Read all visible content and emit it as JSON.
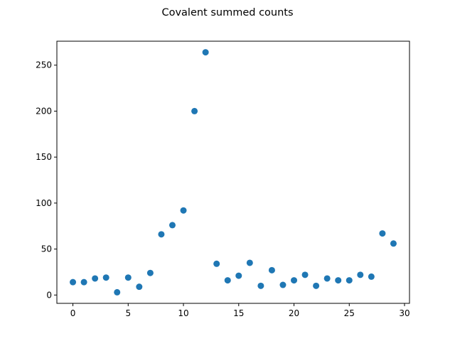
{
  "chart_data": {
    "type": "scatter",
    "title": "Covalent summed counts",
    "xlabel": "",
    "ylabel": "",
    "xlim": [
      -1.45,
      30.45
    ],
    "ylim": [
      -9.05,
      276.05
    ],
    "grid": false,
    "x_ticks": [
      0,
      5,
      10,
      15,
      20,
      25,
      30
    ],
    "y_ticks": [
      0,
      50,
      100,
      150,
      200,
      250
    ],
    "x": [
      0,
      1,
      2,
      3,
      4,
      5,
      6,
      7,
      8,
      9,
      10,
      11,
      12,
      13,
      14,
      15,
      16,
      17,
      18,
      19,
      20,
      21,
      22,
      23,
      24,
      25,
      26,
      27,
      28,
      29
    ],
    "y": [
      14,
      14,
      18,
      19,
      3,
      19,
      9,
      24,
      66,
      76,
      92,
      200,
      264,
      34,
      16,
      21,
      35,
      10,
      27,
      11,
      16,
      22,
      10,
      18,
      16,
      16,
      22,
      20,
      67,
      56
    ],
    "color": "#1f77b4"
  }
}
